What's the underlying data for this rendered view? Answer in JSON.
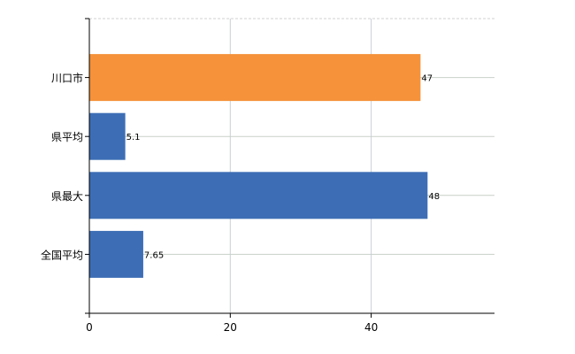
{
  "chart_data": {
    "type": "bar",
    "orientation": "horizontal",
    "categories": [
      "川口市",
      "県平均",
      "県最大",
      "全国平均"
    ],
    "values": [
      47,
      5.1,
      48,
      7.65
    ],
    "data_labels": [
      "47",
      "5.1",
      "48",
      "7.65"
    ],
    "bar_colors": [
      "#f5923a",
      "#3d6eb5",
      "#3d6eb5",
      "#3d6eb5"
    ],
    "xlim": [
      0,
      57.5
    ],
    "x_ticks": [
      0,
      20,
      40
    ],
    "x_tick_labels": [
      "0",
      "20",
      "40"
    ],
    "grid": true,
    "title": "",
    "xlabel": "",
    "ylabel": ""
  }
}
